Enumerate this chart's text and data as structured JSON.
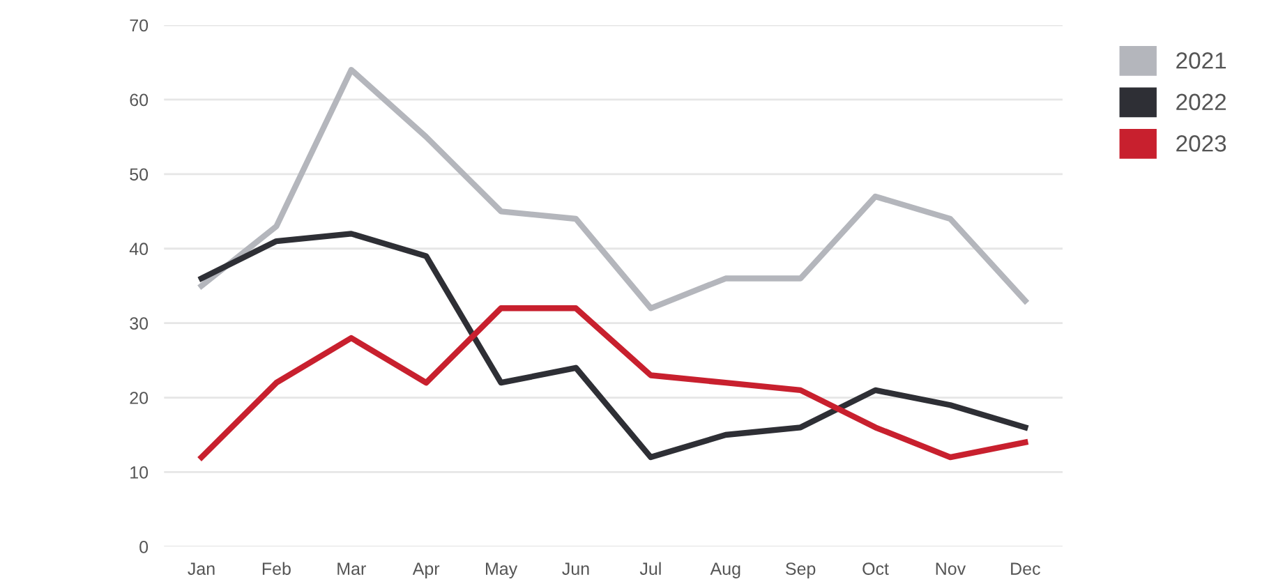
{
  "chart_data": {
    "type": "line",
    "categories": [
      "Jan",
      "Feb",
      "Mar",
      "Apr",
      "May",
      "Jun",
      "Jul",
      "Aug",
      "Sep",
      "Oct",
      "Nov",
      "Dec"
    ],
    "series": [
      {
        "name": "2021",
        "color": "#b4b6bc",
        "values": [
          35,
          43,
          64,
          55,
          45,
          44,
          32,
          36,
          36,
          47,
          44,
          33
        ]
      },
      {
        "name": "2022",
        "color": "#2e2f35",
        "values": [
          36,
          41,
          42,
          39,
          22,
          24,
          12,
          15,
          16,
          21,
          19,
          16
        ]
      },
      {
        "name": "2023",
        "color": "#c8202e",
        "values": [
          12,
          22,
          28,
          22,
          32,
          32,
          23,
          22,
          21,
          16,
          12,
          14
        ]
      }
    ],
    "ylim": [
      0,
      70
    ],
    "yticks": [
      0,
      10,
      20,
      30,
      40,
      50,
      60,
      70
    ],
    "grid": "y",
    "legend": "top right",
    "marker": "none",
    "line_style": "solid"
  }
}
